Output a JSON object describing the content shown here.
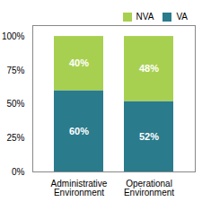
{
  "chart_data": {
    "type": "bar",
    "stacked": true,
    "data_labels": true,
    "grid": false,
    "legend": "upper right",
    "categories": [
      "Administrative\nEnvironment",
      "Operational\nEnvironment"
    ],
    "series": [
      {
        "name": "VA",
        "color": "#2a7b8c",
        "values": [
          60,
          52
        ],
        "value_labels": [
          "60%",
          "52%"
        ]
      },
      {
        "name": "NVA",
        "color": "#a8d050",
        "values": [
          40,
          48
        ],
        "value_labels": [
          "40%",
          "48%"
        ]
      }
    ],
    "ylim": [
      0,
      108
    ],
    "yticks": [
      {
        "value": 0,
        "label": "0%"
      },
      {
        "value": 25,
        "label": "25%"
      },
      {
        "value": 50,
        "label": "50%"
      },
      {
        "value": 75,
        "label": "75%"
      },
      {
        "value": 100,
        "label": "100%"
      }
    ]
  }
}
